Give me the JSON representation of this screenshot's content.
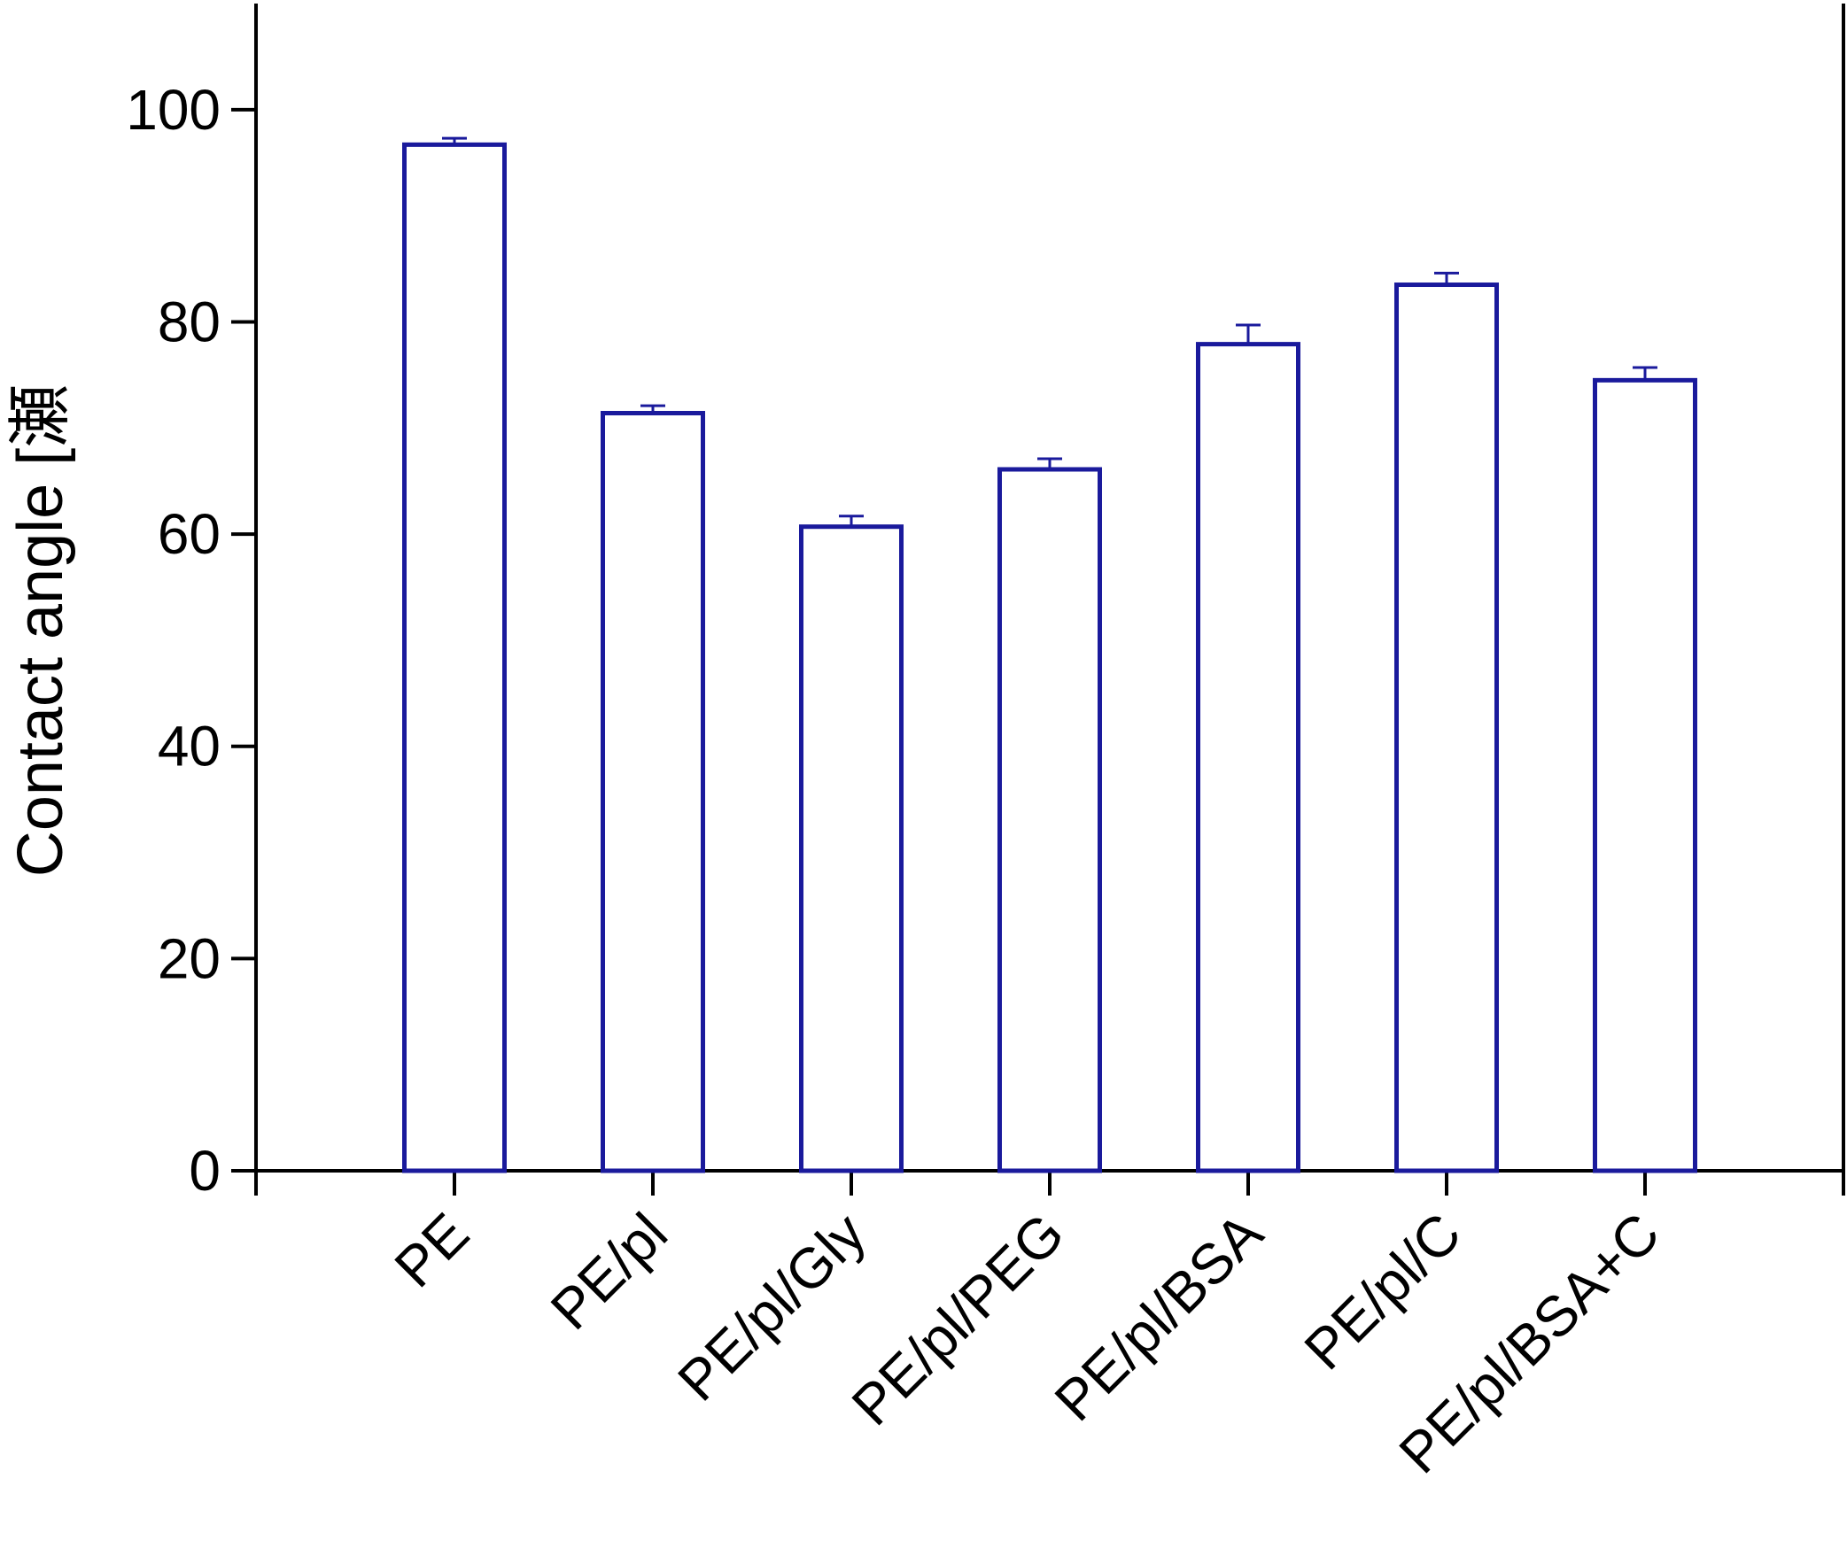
{
  "chart_data": {
    "type": "bar",
    "y_label": "Contact angle [瀬",
    "categories": [
      "PE",
      "PE/pl",
      "PE/pl/Gly",
      "PE/pl/PEG",
      "PE/pl/BSA",
      "PE/pl/C",
      "PE/pl/BSA+C"
    ],
    "values": [
      96.7,
      71.4,
      60.7,
      66.1,
      77.9,
      83.5,
      74.5
    ],
    "errors": [
      0.6,
      0.7,
      1.0,
      1.0,
      1.8,
      1.1,
      1.2
    ],
    "color": "#1a1a9c",
    "ylim": [
      0,
      110
    ],
    "yticks": [
      0,
      20,
      40,
      60,
      80,
      100
    ],
    "grid": false
  }
}
